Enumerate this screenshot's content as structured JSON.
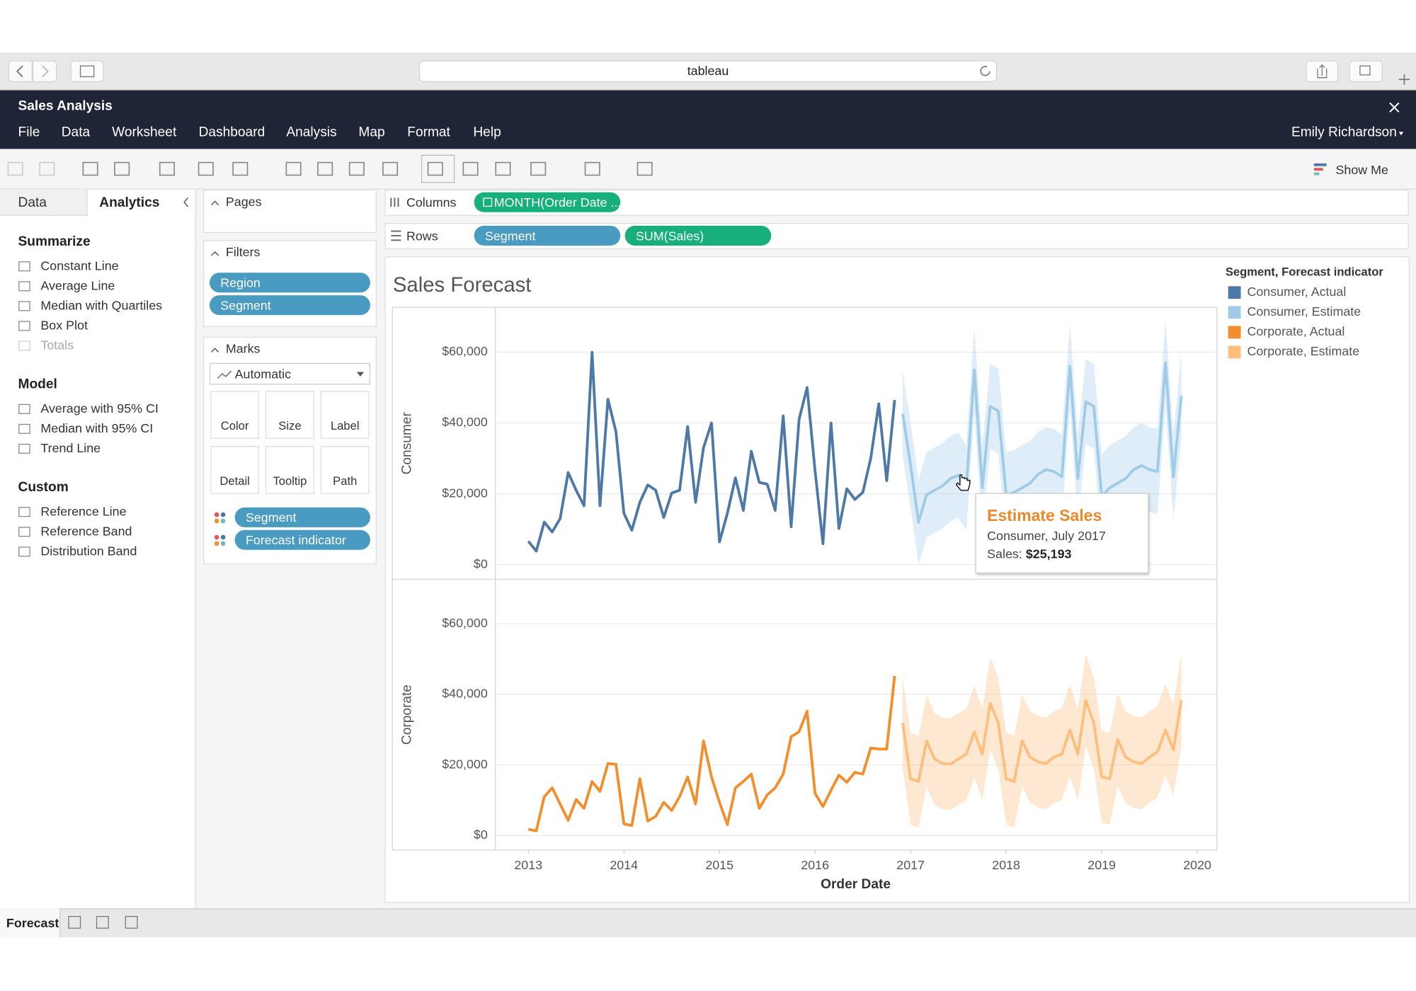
{
  "browser": {
    "address": "tableau"
  },
  "app": {
    "title": "Sales Analysis",
    "menu": [
      "File",
      "Data",
      "Worksheet",
      "Dashboard",
      "Analysis",
      "Map",
      "Format",
      "Help"
    ],
    "user": "Emily Richardson",
    "show_me": "Show Me"
  },
  "side_tabs": [
    "Data",
    "Analytics"
  ],
  "analytics": {
    "sections": [
      {
        "title": "Summarize",
        "items": [
          {
            "label": "Constant Line"
          },
          {
            "label": "Average Line"
          },
          {
            "label": "Median with Quartiles"
          },
          {
            "label": "Box Plot"
          },
          {
            "label": "Totals",
            "enabled": false
          }
        ]
      },
      {
        "title": "Model",
        "items": [
          {
            "label": "Average with 95% CI"
          },
          {
            "label": "Median with 95% CI"
          },
          {
            "label": "Trend Line"
          }
        ]
      },
      {
        "title": "Custom",
        "items": [
          {
            "label": "Reference Line"
          },
          {
            "label": "Reference Band"
          },
          {
            "label": "Distribution Band"
          }
        ]
      }
    ]
  },
  "pages": {
    "title": "Pages"
  },
  "filters": {
    "title": "Filters",
    "pills": [
      "Region",
      "Segment"
    ]
  },
  "marks": {
    "title": "Marks",
    "type": "Automatic",
    "buttons": [
      "Color",
      "Size",
      "Label",
      "Detail",
      "Tooltip",
      "Path"
    ],
    "pills": [
      "Segment",
      "Forecast indicator"
    ]
  },
  "shelves": {
    "columns_label": "Columns",
    "columns": [
      "MONTH(Order Date ..."
    ],
    "rows_label": "Rows",
    "rows": [
      "Segment",
      "SUM(Sales)"
    ]
  },
  "sheet_tabs": [
    "Forecast"
  ],
  "chart_data": {
    "type": "line",
    "title": "Sales Forecast",
    "xlabel": "Order Date",
    "xlim": [
      2012.65,
      2020.2
    ],
    "xticks": [
      2013,
      2014,
      2015,
      2016,
      2017,
      2018,
      2019,
      2020
    ],
    "ylim": [
      -4000,
      72500
    ],
    "yticks": [
      {
        "value": 0,
        "label": "$0"
      },
      {
        "value": 20000,
        "label": "$20,000"
      },
      {
        "value": 40000,
        "label": "$40,000"
      },
      {
        "value": 60000,
        "label": "$60,000"
      }
    ],
    "grid": true,
    "legend": {
      "title": "Segment, Forecast indicator",
      "position": "right"
    },
    "panels": [
      {
        "ylabel": "Consumer",
        "series": [
          {
            "name": "Consumer, Actual",
            "color": "#4e79a7",
            "x": [
              2013,
              2013.083,
              2013.167,
              2013.25,
              2013.333,
              2013.417,
              2013.5,
              2013.583,
              2013.667,
              2013.75,
              2013.833,
              2013.917,
              2014,
              2014.083,
              2014.167,
              2014.25,
              2014.333,
              2014.417,
              2014.5,
              2014.583,
              2014.667,
              2014.75,
              2014.833,
              2014.917,
              2015,
              2015.083,
              2015.167,
              2015.25,
              2015.333,
              2015.417,
              2015.5,
              2015.583,
              2015.667,
              2015.75,
              2015.833,
              2015.917,
              2016,
              2016.083,
              2016.167,
              2016.25,
              2016.333,
              2016.417,
              2016.5,
              2016.583,
              2016.667,
              2016.75,
              2016.833
            ],
            "values": [
              6600,
              3800,
              12000,
              9200,
              13000,
              26000,
              21000,
              16600,
              60000,
              16600,
              46700,
              37500,
              14500,
              9700,
              17600,
              22500,
              21000,
              13300,
              20200,
              21000,
              39000,
              17600,
              33000,
              40000,
              6400,
              14500,
              24500,
              15300,
              32000,
              23200,
              22700,
              15300,
              42000,
              10700,
              41000,
              50000,
              26600,
              5900,
              40000,
              10200,
              21400,
              18400,
              20400,
              30000,
              45400,
              23700,
              46500
            ]
          },
          {
            "name": "Consumer, Estimate",
            "color": "#a0cbe8",
            "x": [
              2016.917,
              2017,
              2017.083,
              2017.167,
              2017.25,
              2017.333,
              2017.417,
              2017.5,
              2017.583,
              2017.667,
              2017.75,
              2017.833,
              2017.917,
              2018,
              2018.083,
              2018.167,
              2018.25,
              2018.333,
              2018.417,
              2018.5,
              2018.583,
              2018.667,
              2018.75,
              2018.833,
              2018.917,
              2019,
              2019.083,
              2019.167,
              2019.25,
              2019.333,
              2019.417,
              2019.5,
              2019.583,
              2019.667,
              2019.75,
              2019.833
            ],
            "values": [
              42600,
              28000,
              12000,
              19700,
              21000,
              22200,
              24300,
              25193,
              21700,
              55000,
              21700,
              44700,
              43400,
              19700,
              20400,
              21700,
              23000,
              25500,
              26800,
              26300,
              24800,
              56000,
              24300,
              46000,
              44700,
              19100,
              21700,
              23000,
              24300,
              26800,
              28000,
              26800,
              26300,
              57000,
              24800,
              47700
            ],
            "lower": [
              30600,
              16000,
              0,
              7700,
              9000,
              10200,
              12300,
              13193,
              9700,
              43000,
              9700,
              32700,
              31400,
              7700,
              8400,
              9700,
              11000,
              13500,
              14800,
              14300,
              12800,
              44000,
              12300,
              34000,
              32700,
              7100,
              9700,
              11000,
              12300,
              14800,
              16000,
              14800,
              14300,
              45000,
              12800,
              35700
            ],
            "upper": [
              54600,
              40000,
              24000,
              31700,
              33000,
              34200,
              36300,
              37193,
              33700,
              67000,
              33700,
              56700,
              55400,
              31700,
              32400,
              33700,
              35000,
              37500,
              38800,
              38300,
              36800,
              68000,
              36300,
              58000,
              56700,
              31100,
              33700,
              35000,
              36300,
              38800,
              40000,
              38800,
              38300,
              69000,
              36800,
              59700
            ]
          }
        ]
      },
      {
        "ylabel": "Corporate",
        "series": [
          {
            "name": "Corporate, Actual",
            "color": "#f28e2b",
            "x": [
              2013,
              2013.083,
              2013.167,
              2013.25,
              2013.333,
              2013.417,
              2013.5,
              2013.583,
              2013.667,
              2013.75,
              2013.833,
              2013.917,
              2014,
              2014.083,
              2014.167,
              2014.25,
              2014.333,
              2014.417,
              2014.5,
              2014.583,
              2014.667,
              2014.75,
              2014.833,
              2014.917,
              2015,
              2015.083,
              2015.167,
              2015.25,
              2015.333,
              2015.417,
              2015.5,
              2015.583,
              2015.667,
              2015.75,
              2015.833,
              2015.917,
              2016,
              2016.083,
              2016.167,
              2016.25,
              2016.333,
              2016.417,
              2016.5,
              2016.583,
              2016.667,
              2016.75,
              2016.833
            ],
            "values": [
              1800,
              1300,
              11000,
              13500,
              8900,
              4300,
              10200,
              7700,
              15300,
              12500,
              20400,
              20200,
              3300,
              2800,
              16100,
              4100,
              5400,
              9400,
              7100,
              11000,
              16600,
              8900,
              26800,
              16600,
              9400,
              3100,
              13500,
              15300,
              17400,
              7700,
              11500,
              13500,
              17400,
              28000,
              29400,
              35200,
              12000,
              8200,
              12800,
              17100,
              15100,
              17900,
              17400,
              24800,
              24500,
              24500,
              45200
            ]
          },
          {
            "name": "Corporate, Estimate",
            "color": "#ffbe7d",
            "x": [
              2016.917,
              2017,
              2017.083,
              2017.167,
              2017.25,
              2017.333,
              2017.417,
              2017.5,
              2017.583,
              2017.667,
              2017.75,
              2017.833,
              2017.917,
              2018,
              2018.083,
              2018.167,
              2018.25,
              2018.333,
              2018.417,
              2018.5,
              2018.583,
              2018.667,
              2018.75,
              2018.833,
              2018.917,
              2019,
              2019.083,
              2019.167,
              2019.25,
              2019.333,
              2019.417,
              2019.5,
              2019.583,
              2019.667,
              2019.75,
              2019.833
            ],
            "values": [
              31900,
              16100,
              15300,
              26800,
              21700,
              20400,
              20200,
              21700,
              23000,
              29400,
              23000,
              37500,
              31900,
              16100,
              15300,
              26800,
              22200,
              20900,
              20400,
              22200,
              23000,
              29900,
              23000,
              38300,
              31900,
              16600,
              16100,
              27200,
              22200,
              20900,
              20400,
              22200,
              23700,
              29900,
              24300,
              38300
            ],
            "lower": [
              18900,
              3100,
              2300,
              13800,
              8700,
              7400,
              7200,
              8700,
              10000,
              16400,
              10000,
              24500,
              18900,
              3100,
              2300,
              13800,
              9200,
              7900,
              7400,
              9200,
              10000,
              16900,
              10000,
              25300,
              18900,
              3600,
              3100,
              14200,
              9200,
              7900,
              7400,
              9200,
              10700,
              16900,
              11300,
              25300
            ],
            "upper": [
              44900,
              29100,
              28300,
              39800,
              34700,
              33400,
              33200,
              34700,
              36000,
              42400,
              36000,
              50500,
              44900,
              29100,
              28300,
              39800,
              35200,
              33900,
              33400,
              35200,
              36000,
              42900,
              36000,
              51300,
              44900,
              29600,
              29100,
              40200,
              35200,
              33900,
              33400,
              35200,
              36700,
              42900,
              37300,
              51300
            ]
          }
        ]
      }
    ],
    "tooltip": {
      "title": "Estimate Sales",
      "subtitle": "Consumer, July 2017",
      "label": "Sales:",
      "value": "$25,193"
    }
  }
}
